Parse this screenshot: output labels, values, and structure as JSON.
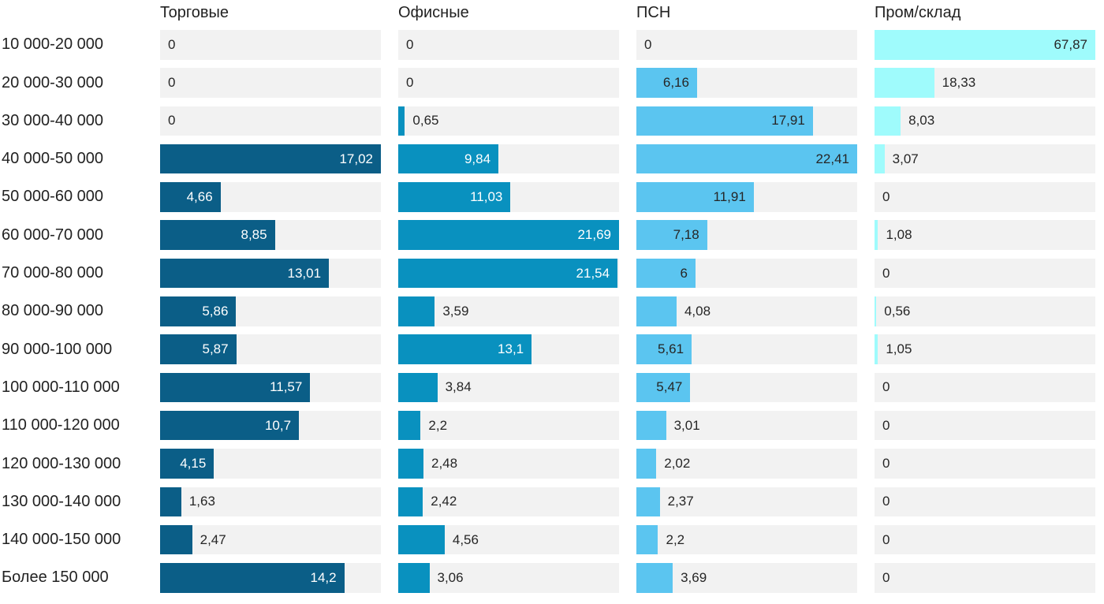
{
  "chart_data": {
    "type": "bar",
    "orientation": "horizontal",
    "title": "",
    "xlabel": "",
    "ylabel": "",
    "grid": false,
    "legend_position": "column-headers-top",
    "scaling": "each series scaled independently so its max value fills the 280px track",
    "track_color": "#f2f2f2",
    "text_color": "#262626",
    "categories": [
      "10 000-20 000",
      "20 000-30 000",
      "30 000-40 000",
      "40 000-50 000",
      "50 000-60 000",
      "60 000-70 000",
      "70 000-80 000",
      "80 000-90 000",
      "90 000-100 000",
      "100 000-110 000",
      "110 000-120 000",
      "120 000-130 000",
      "130 000-140 000",
      "140 000-150 000",
      "Более 150 000"
    ],
    "series": [
      {
        "name": "Торговые",
        "color": "#0b5e87",
        "label_color_inside": "#ffffff",
        "values": [
          0,
          0,
          0,
          17.02,
          4.66,
          8.85,
          13.01,
          5.86,
          5.87,
          11.57,
          10.7,
          4.15,
          1.63,
          2.47,
          14.2
        ],
        "labels": [
          "0",
          "0",
          "0",
          "17,02",
          "4,66",
          "8,85",
          "13,01",
          "5,86",
          "5,87",
          "11,57",
          "10,7",
          "4,15",
          "1,63",
          "2,47",
          "14,2"
        ]
      },
      {
        "name": "Офисные",
        "color": "#0991bf",
        "label_color_inside": "#ffffff",
        "values": [
          0,
          0,
          0.65,
          9.84,
          11.03,
          21.69,
          21.54,
          3.59,
          13.1,
          3.84,
          2.2,
          2.48,
          2.42,
          4.56,
          3.06
        ],
        "labels": [
          "0",
          "0",
          "0,65",
          "9,84",
          "11,03",
          "21,69",
          "21,54",
          "3,59",
          "13,1",
          "3,84",
          "2,2",
          "2,48",
          "2,42",
          "4,56",
          "3,06"
        ]
      },
      {
        "name": "ПСН",
        "color": "#5bc5f0",
        "label_color_inside": "#262626",
        "values": [
          0,
          6.16,
          17.91,
          22.41,
          11.91,
          7.18,
          6,
          4.08,
          5.61,
          5.47,
          3.01,
          2.02,
          2.37,
          2.2,
          3.69
        ],
        "labels": [
          "0",
          "6,16",
          "17,91",
          "22,41",
          "11,91",
          "7,18",
          "6",
          "4,08",
          "5,61",
          "5,47",
          "3,01",
          "2,02",
          "2,37",
          "2,2",
          "3,69"
        ]
      },
      {
        "name": "Пром/склад",
        "color": "#9ffbfc",
        "label_color_inside": "#262626",
        "values": [
          67.87,
          18.33,
          8.03,
          3.07,
          0,
          1.08,
          0,
          0.56,
          1.05,
          0,
          0,
          0,
          0,
          0,
          0
        ],
        "labels": [
          "67,87",
          "18,33",
          "8,03",
          "3,07",
          "0",
          "1,08",
          "0",
          "0,56",
          "1,05",
          "0",
          "0",
          "0",
          "0",
          "0",
          "0"
        ]
      }
    ]
  }
}
